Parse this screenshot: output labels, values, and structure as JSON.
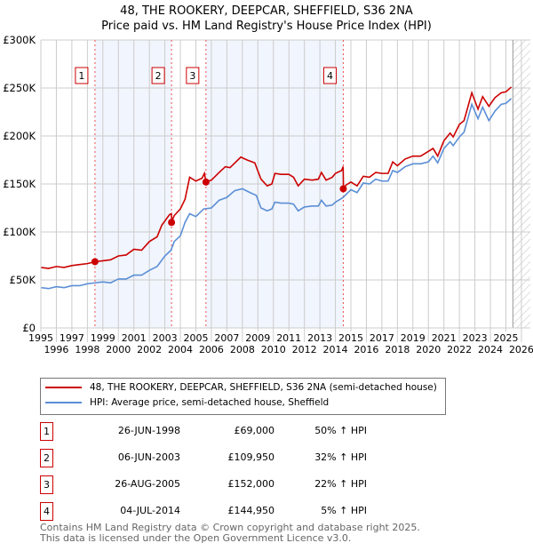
{
  "title": [
    "48, THE ROOKERY, DEEPCAR, SHEFFIELD, S36 2NA",
    "Price paid vs. HM Land Registry's House Price Index (HPI)"
  ],
  "chart_data": {
    "type": "line",
    "xlim": [
      1995,
      2026
    ],
    "ylim": [
      0,
      300000
    ],
    "xticks": [
      "1995",
      "1996",
      "1997",
      "1998",
      "1999",
      "2000",
      "2001",
      "2002",
      "2003",
      "2004",
      "2005",
      "2006",
      "2007",
      "2008",
      "2009",
      "2010",
      "2011",
      "2012",
      "2013",
      "2014",
      "2015",
      "2016",
      "2017",
      "2018",
      "2019",
      "2020",
      "2021",
      "2022",
      "2023",
      "2024",
      "2025",
      "2026"
    ],
    "yticks": [
      {
        "v": 0,
        "label": "£0"
      },
      {
        "v": 50000,
        "label": "£50K"
      },
      {
        "v": 100000,
        "label": "£100K"
      },
      {
        "v": 150000,
        "label": "£150K"
      },
      {
        "v": 200000,
        "label": "£200K"
      },
      {
        "v": 250000,
        "label": "£250K"
      },
      {
        "v": 300000,
        "label": "£300K"
      }
    ],
    "series": [
      {
        "name": "48, THE ROOKERY, DEEPCAR, SHEFFIELD, S36 2NA (semi-detached house)",
        "color": "#cc0000",
        "points": [
          [
            1995,
            63
          ],
          [
            1995.5,
            62
          ],
          [
            1996,
            64
          ],
          [
            1996.5,
            63
          ],
          [
            1997,
            65
          ],
          [
            1997.5,
            66
          ],
          [
            1998,
            67
          ],
          [
            1998.5,
            69
          ],
          [
            1999,
            70
          ],
          [
            1999.5,
            71
          ],
          [
            2000,
            75
          ],
          [
            2000.5,
            76
          ],
          [
            2001,
            82
          ],
          [
            2001.5,
            81
          ],
          [
            2002,
            90
          ],
          [
            2002.5,
            95
          ],
          [
            2002.8,
            107
          ],
          [
            2003.3,
            118
          ],
          [
            2003.42,
            119
          ],
          [
            2003.45,
            111
          ],
          [
            2003.6,
            117
          ],
          [
            2004,
            124
          ],
          [
            2004.3,
            134
          ],
          [
            2004.6,
            157
          ],
          [
            2005,
            153
          ],
          [
            2005.4,
            156
          ],
          [
            2005.55,
            161
          ],
          [
            2005.65,
            152
          ],
          [
            2006,
            154
          ],
          [
            2006.5,
            162
          ],
          [
            2006.9,
            168
          ],
          [
            2007.2,
            167
          ],
          [
            2007.9,
            178
          ],
          [
            2008.3,
            175
          ],
          [
            2008.8,
            172
          ],
          [
            2009.2,
            155
          ],
          [
            2009.6,
            148
          ],
          [
            2009.9,
            150
          ],
          [
            2010.1,
            161
          ],
          [
            2010.5,
            160
          ],
          [
            2011,
            160
          ],
          [
            2011.3,
            157
          ],
          [
            2011.6,
            148
          ],
          [
            2012,
            155
          ],
          [
            2012.5,
            154
          ],
          [
            2012.9,
            155
          ],
          [
            2013.1,
            162
          ],
          [
            2013.4,
            154
          ],
          [
            2013.8,
            157
          ],
          [
            2014,
            161
          ],
          [
            2014.4,
            164
          ],
          [
            2014.5,
            168
          ],
          [
            2014.52,
            146
          ],
          [
            2014.7,
            149
          ],
          [
            2015,
            152
          ],
          [
            2015.4,
            148
          ],
          [
            2015.8,
            158
          ],
          [
            2016.2,
            157
          ],
          [
            2016.6,
            162
          ],
          [
            2017,
            161
          ],
          [
            2017.4,
            161
          ],
          [
            2017.7,
            173
          ],
          [
            2018,
            169
          ],
          [
            2018.5,
            176
          ],
          [
            2019,
            179
          ],
          [
            2019.5,
            179
          ],
          [
            2020,
            184
          ],
          [
            2020.3,
            187
          ],
          [
            2020.6,
            179
          ],
          [
            2021,
            195
          ],
          [
            2021.4,
            203
          ],
          [
            2021.6,
            199
          ],
          [
            2022,
            212
          ],
          [
            2022.3,
            216
          ],
          [
            2022.8,
            245
          ],
          [
            2023.2,
            228
          ],
          [
            2023.5,
            241
          ],
          [
            2023.9,
            231
          ],
          [
            2024.3,
            240
          ],
          [
            2024.7,
            245
          ],
          [
            2025,
            246
          ],
          [
            2025.35,
            251
          ]
        ]
      },
      {
        "name": "HPI: Average price, semi-detached house, Sheffield",
        "color": "#5b8fd6",
        "points": [
          [
            1995,
            42
          ],
          [
            1995.5,
            41
          ],
          [
            1996,
            43
          ],
          [
            1996.5,
            42
          ],
          [
            1997,
            44
          ],
          [
            1997.5,
            44
          ],
          [
            1998,
            46
          ],
          [
            1998.5,
            47
          ],
          [
            1999,
            48
          ],
          [
            1999.5,
            47
          ],
          [
            2000,
            51
          ],
          [
            2000.5,
            51
          ],
          [
            2001,
            55
          ],
          [
            2001.5,
            55
          ],
          [
            2002,
            60
          ],
          [
            2002.5,
            64
          ],
          [
            2003,
            75
          ],
          [
            2003.4,
            81
          ],
          [
            2003.6,
            90
          ],
          [
            2004,
            96
          ],
          [
            2004.3,
            110
          ],
          [
            2004.6,
            119
          ],
          [
            2005,
            116
          ],
          [
            2005.5,
            124
          ],
          [
            2006,
            125
          ],
          [
            2006.5,
            133
          ],
          [
            2007,
            136
          ],
          [
            2007.5,
            143
          ],
          [
            2008,
            145
          ],
          [
            2008.5,
            141
          ],
          [
            2008.9,
            138
          ],
          [
            2009.2,
            125
          ],
          [
            2009.6,
            122
          ],
          [
            2009.9,
            124
          ],
          [
            2010.1,
            131
          ],
          [
            2010.5,
            130
          ],
          [
            2011,
            130
          ],
          [
            2011.3,
            129
          ],
          [
            2011.6,
            122
          ],
          [
            2012,
            126
          ],
          [
            2012.5,
            127
          ],
          [
            2012.9,
            127
          ],
          [
            2013.1,
            133
          ],
          [
            2013.4,
            127
          ],
          [
            2013.8,
            128
          ],
          [
            2014,
            131
          ],
          [
            2014.5,
            136
          ],
          [
            2015,
            144
          ],
          [
            2015.4,
            141
          ],
          [
            2015.8,
            151
          ],
          [
            2016.2,
            150
          ],
          [
            2016.6,
            155
          ],
          [
            2017,
            153
          ],
          [
            2017.4,
            153
          ],
          [
            2017.7,
            164
          ],
          [
            2018,
            162
          ],
          [
            2018.5,
            168
          ],
          [
            2019,
            171
          ],
          [
            2019.5,
            171
          ],
          [
            2020,
            173
          ],
          [
            2020.3,
            179
          ],
          [
            2020.6,
            172
          ],
          [
            2021,
            187
          ],
          [
            2021.4,
            194
          ],
          [
            2021.6,
            190
          ],
          [
            2022,
            199
          ],
          [
            2022.3,
            204
          ],
          [
            2022.8,
            233
          ],
          [
            2023.2,
            218
          ],
          [
            2023.5,
            230
          ],
          [
            2023.9,
            216
          ],
          [
            2024.3,
            226
          ],
          [
            2024.7,
            233
          ],
          [
            2025,
            234
          ],
          [
            2025.35,
            239
          ]
        ]
      }
    ],
    "sales": [
      {
        "n": "1",
        "date": "26-JUN-1998",
        "x": 1998.49,
        "price": "£69,000",
        "value": 69000,
        "hpi": "50% ↑ HPI"
      },
      {
        "n": "2",
        "date": "06-JUN-2003",
        "x": 2003.43,
        "price": "£109,950",
        "value": 109950,
        "hpi": "32% ↑ HPI"
      },
      {
        "n": "3",
        "date": "26-AUG-2005",
        "x": 2005.65,
        "price": "£152,000",
        "value": 152000,
        "hpi": "22% ↑ HPI"
      },
      {
        "n": "4",
        "date": "04-JUL-2014",
        "x": 2014.51,
        "price": "£144,950",
        "value": 144950,
        "hpi": "5% ↑ HPI"
      }
    ],
    "shaded": [
      [
        1998.49,
        2003.43
      ],
      [
        2005.65,
        2014.51
      ]
    ],
    "forecast_from": 2025.45
  },
  "footer": [
    "Contains HM Land Registry data © Crown copyright and database right 2025.",
    "This data is licensed under the Open Government Licence v3.0."
  ]
}
